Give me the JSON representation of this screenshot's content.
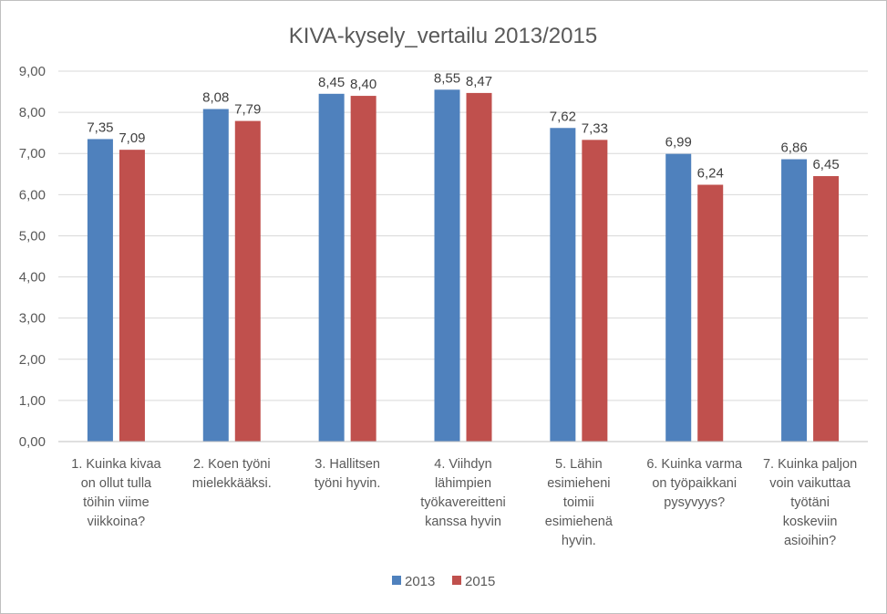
{
  "chart_data": {
    "type": "bar",
    "title": "KIVA-kysely_vertailu 2013/2015",
    "xlabel": "",
    "ylabel": "",
    "ylim": [
      0,
      9
    ],
    "y_ticks": [
      "0,00",
      "1,00",
      "2,00",
      "3,00",
      "4,00",
      "5,00",
      "6,00",
      "7,00",
      "8,00",
      "9,00"
    ],
    "grid": true,
    "legend_position": "bottom",
    "categories": [
      [
        "1. Kuinka kivaa",
        "on ollut tulla",
        "töihin viime",
        "viikkoina?"
      ],
      [
        "2. Koen työni",
        "mielekkääksi."
      ],
      [
        "3. Hallitsen",
        "työni hyvin."
      ],
      [
        "4. Viihdyn",
        "lähimpien",
        "työkavereitteni",
        "kanssa hyvin"
      ],
      [
        "5. Lähin",
        "esimieheni",
        "toimii",
        "esimiehenä",
        "hyvin."
      ],
      [
        "6. Kuinka varma",
        "on työpaikkani",
        "pysyvyys?"
      ],
      [
        "7. Kuinka paljon",
        "voin vaikuttaa",
        "työtäni",
        "koskeviin",
        "asioihin?"
      ]
    ],
    "series": [
      {
        "name": "2013",
        "color": "#4f81bd",
        "values": [
          7.35,
          8.08,
          8.45,
          8.55,
          7.62,
          6.99,
          6.86
        ],
        "labels": [
          "7,35",
          "8,08",
          "8,45",
          "8,55",
          "7,62",
          "6,99",
          "6,86"
        ]
      },
      {
        "name": "2015",
        "color": "#c0504d",
        "values": [
          7.09,
          7.79,
          8.4,
          8.47,
          7.33,
          6.24,
          6.45
        ],
        "labels": [
          "7,09",
          "7,79",
          "8,40",
          "8,47",
          "7,33",
          "6,24",
          "6,45"
        ]
      }
    ]
  }
}
